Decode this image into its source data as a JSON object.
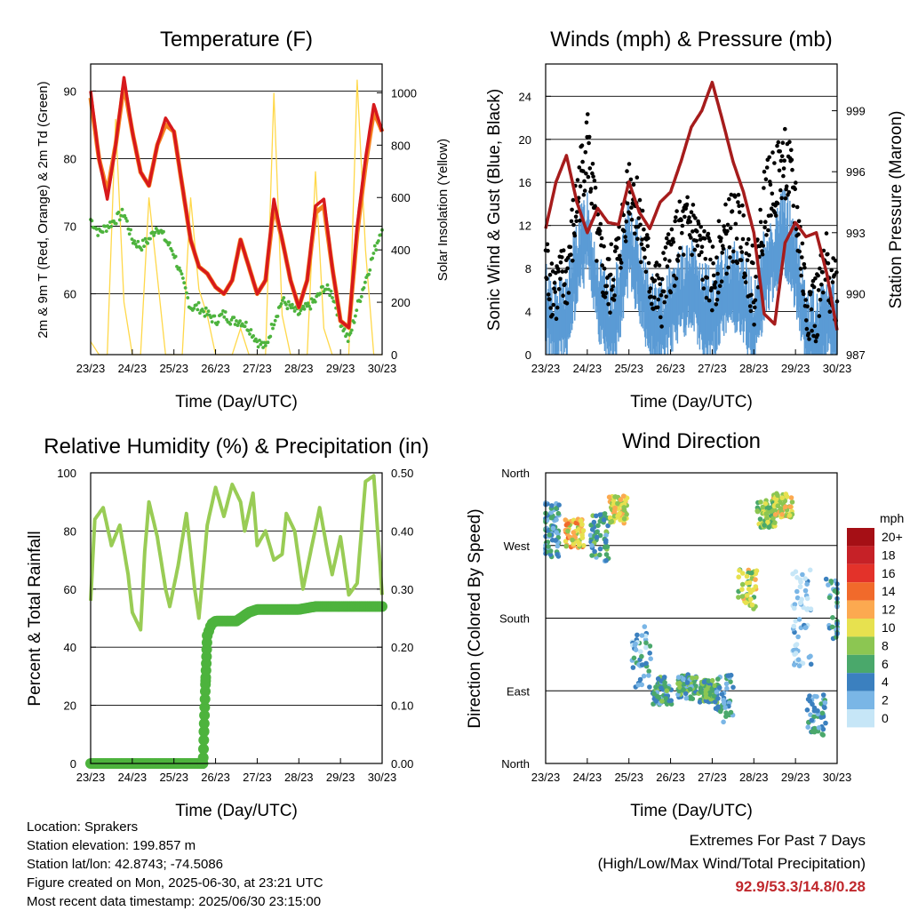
{
  "colors": {
    "temp_red": "#d7191c",
    "temp_orange": "#f58220",
    "dewpoint_green": "#4db33d",
    "solar_yellow": "#ffd84a",
    "wind_blue": "#5b9bd5",
    "gust_black": "#000000",
    "pressure_maroon": "#a61c1c",
    "rh_green": "#99cc55",
    "rain_green": "#4db33d",
    "grid": "#000000"
  },
  "x_ticks": [
    "23/23",
    "24/23",
    "25/23",
    "26/23",
    "27/23",
    "28/23",
    "29/23",
    "30/23"
  ],
  "chart_data": [
    {
      "type": "line",
      "title": "Temperature (F)",
      "xlabel": "Time (Day/UTC)",
      "ylabel": "2m & 9m T (Red, Orange) & 2m Td (Green)",
      "y2label": "Solar Insolation (Yellow)",
      "x_ticks": [
        "23/23",
        "24/23",
        "25/23",
        "26/23",
        "27/23",
        "28/23",
        "29/23",
        "30/23"
      ],
      "ylim": [
        51,
        94
      ],
      "y_ticks": [
        60,
        70,
        80,
        90
      ],
      "y2lim": [
        0,
        1110
      ],
      "y2_ticks": [
        0,
        200,
        400,
        600,
        800,
        1000
      ],
      "x_days": [
        0,
        0.2,
        0.4,
        0.6,
        0.8,
        1.0,
        1.2,
        1.4,
        1.6,
        1.8,
        2.0,
        2.2,
        2.4,
        2.6,
        2.8,
        3.0,
        3.2,
        3.4,
        3.6,
        3.8,
        4.0,
        4.2,
        4.4,
        4.6,
        4.8,
        5.0,
        5.2,
        5.4,
        5.6,
        5.8,
        6.0,
        6.2,
        6.4,
        6.6,
        6.8,
        7.0
      ],
      "series": [
        {
          "key": "t2m",
          "values": [
            90,
            80,
            74,
            82,
            92,
            84,
            78,
            76,
            82,
            86,
            84,
            76,
            68,
            64,
            63,
            61,
            60,
            62,
            68,
            64,
            60,
            62,
            74,
            68,
            62,
            58,
            62,
            73,
            74,
            64,
            56,
            55,
            70,
            80,
            88,
            84
          ]
        },
        {
          "key": "t9m",
          "values": [
            89,
            80,
            75,
            82,
            91,
            84,
            78,
            76,
            82,
            85,
            84,
            76,
            68,
            64,
            63,
            61,
            60,
            62,
            68,
            64,
            60,
            62,
            73,
            68,
            62,
            58,
            62,
            72,
            73,
            64,
            56,
            55,
            69,
            79,
            87,
            84
          ]
        },
        {
          "key": "td2m",
          "values": [
            71,
            69,
            70,
            71,
            72,
            68,
            67,
            68,
            70,
            68,
            66,
            62,
            58,
            58,
            57,
            56,
            57,
            56,
            56,
            55,
            53,
            52,
            56,
            59,
            58,
            57,
            58,
            59,
            61,
            60,
            56,
            53,
            58,
            62,
            66,
            70
          ]
        },
        {
          "key": "solar",
          "values": [
            50,
            0,
            0,
            900,
            200,
            0,
            0,
            600,
            300,
            0,
            0,
            0,
            600,
            250,
            150,
            0,
            0,
            0,
            100,
            0,
            0,
            0,
            1000,
            150,
            0,
            0,
            0,
            700,
            100,
            0,
            0,
            0,
            1050,
            400,
            0,
            0
          ]
        }
      ]
    },
    {
      "type": "scatter",
      "title": "Winds (mph) & Pressure (mb)",
      "xlabel": "Time (Day/UTC)",
      "ylabel": "Sonic Wind & Gust (Blue, Black)",
      "y2label": "Station Pressure (Maroon)",
      "x_ticks": [
        "23/23",
        "24/23",
        "25/23",
        "26/23",
        "27/23",
        "28/23",
        "29/23",
        "30/23"
      ],
      "ylim": [
        0,
        27
      ],
      "y_ticks": [
        0,
        4,
        8,
        12,
        16,
        20,
        24
      ],
      "y2lim": [
        987,
        1001.3
      ],
      "y2_ticks": [
        987,
        990,
        993,
        996,
        999
      ],
      "x_days": [
        0,
        0.25,
        0.5,
        0.75,
        1.0,
        1.25,
        1.5,
        1.75,
        2.0,
        2.25,
        2.5,
        2.75,
        3.0,
        3.25,
        3.5,
        3.75,
        4.0,
        4.25,
        4.5,
        4.75,
        5.0,
        5.25,
        5.5,
        5.75,
        6.0,
        6.25,
        6.5,
        6.75,
        7.0
      ],
      "series": [
        {
          "key": "wind",
          "values": [
            5,
            3,
            4,
            9,
            12,
            6,
            3,
            5,
            11,
            8,
            4,
            3,
            5,
            6,
            7,
            5,
            4,
            6,
            7,
            6,
            3,
            8,
            10,
            12,
            9,
            3,
            2,
            4,
            3
          ]
        },
        {
          "key": "gust",
          "values": [
            8,
            6,
            7,
            14,
            20,
            10,
            6,
            9,
            16,
            13,
            7,
            5,
            9,
            11,
            12,
            9,
            7,
            10,
            12,
            11,
            6,
            14,
            16,
            18,
            14,
            5,
            4,
            8,
            6
          ]
        },
        {
          "key": "pressure",
          "values": [
            993.2,
            995.5,
            996.8,
            994.5,
            993,
            994.2,
            993.5,
            993.4,
            995.5,
            994,
            993.2,
            994.5,
            995,
            996.5,
            998.2,
            999,
            1000.4,
            998.5,
            996.5,
            995,
            993,
            989,
            988.5,
            992.5,
            993.5,
            992.8,
            993,
            991,
            988.2
          ]
        }
      ]
    },
    {
      "type": "line",
      "title": "Relative Humidity (%) & Precipitation (in)",
      "xlabel": "Time (Day/UTC)",
      "ylabel": "Percent & Total Rainfall",
      "x_ticks": [
        "23/23",
        "24/23",
        "25/23",
        "26/23",
        "27/23",
        "28/23",
        "29/23",
        "30/23"
      ],
      "ylim": [
        0,
        100
      ],
      "y_ticks": [
        0,
        20,
        40,
        60,
        80,
        100
      ],
      "y2lim": [
        0,
        0.5
      ],
      "y2_ticks": [
        "0.00",
        "0.10",
        "0.20",
        "0.30",
        "0.40",
        "0.50"
      ],
      "series": [
        {
          "key": "rh",
          "x": [
            0,
            0.1,
            0.3,
            0.5,
            0.7,
            0.9,
            1.0,
            1.2,
            1.3,
            1.4,
            1.6,
            1.8,
            1.9,
            2.1,
            2.3,
            2.5,
            2.6,
            2.8,
            3.0,
            3.2,
            3.4,
            3.6,
            3.7,
            3.9,
            4.0,
            4.2,
            4.4,
            4.6,
            4.7,
            4.9,
            5.1,
            5.3,
            5.5,
            5.7,
            5.8,
            6.0,
            6.2,
            6.4,
            6.6,
            6.8,
            7.0
          ],
          "values": [
            56,
            84,
            88,
            75,
            82,
            65,
            52,
            46,
            73,
            90,
            78,
            60,
            54,
            68,
            86,
            60,
            50,
            82,
            95,
            85,
            96,
            90,
            80,
            93,
            75,
            80,
            70,
            72,
            86,
            80,
            60,
            74,
            88,
            72,
            65,
            78,
            58,
            62,
            97,
            99,
            58
          ]
        },
        {
          "key": "rain",
          "x": [
            0,
            1,
            2,
            2.7,
            2.72,
            2.75,
            2.78,
            2.8,
            2.85,
            2.9,
            3.0,
            3.5,
            3.8,
            4.0,
            4.5,
            5.0,
            5.4,
            6.0,
            7.0
          ],
          "values": [
            0,
            0,
            0,
            0,
            0.05,
            0.12,
            0.18,
            0.22,
            0.23,
            0.24,
            0.245,
            0.245,
            0.26,
            0.265,
            0.265,
            0.265,
            0.27,
            0.27,
            0.27
          ]
        }
      ]
    },
    {
      "type": "scatter",
      "title": "Wind Direction",
      "xlabel": "Time (Day/UTC)",
      "ylabel": "Direction (Colored By Speed)",
      "x_ticks": [
        "23/23",
        "24/23",
        "25/23",
        "26/23",
        "27/23",
        "28/23",
        "29/23",
        "30/23"
      ],
      "y_ticks": [
        "North",
        "East",
        "South",
        "West",
        "North"
      ],
      "ylim": [
        0,
        360
      ],
      "legend_title": "mph",
      "legend_labels": [
        "20+",
        "18",
        "16",
        "14",
        "12",
        "10",
        "8",
        "6",
        "4",
        "2",
        "0"
      ],
      "legend_colors": [
        "#a50f15",
        "#c62127",
        "#e3322a",
        "#f16a2b",
        "#fca950",
        "#e7e14f",
        "#8cc652",
        "#4aa86b",
        "#3b80bf",
        "#7ab6e6",
        "#c6e6f7"
      ],
      "clusters": [
        {
          "day": 0.1,
          "dir": 290,
          "spread": 70,
          "speed": 4,
          "n": 70
        },
        {
          "day": 0.7,
          "dir": 285,
          "spread": 35,
          "speed": 11,
          "n": 60
        },
        {
          "day": 1.3,
          "dir": 280,
          "spread": 60,
          "speed": 5,
          "n": 55
        },
        {
          "day": 1.75,
          "dir": 315,
          "spread": 35,
          "speed": 10,
          "n": 70
        },
        {
          "day": 2.3,
          "dir": 130,
          "spread": 80,
          "speed": 3,
          "n": 45
        },
        {
          "day": 2.8,
          "dir": 90,
          "spread": 35,
          "speed": 5,
          "n": 70
        },
        {
          "day": 3.4,
          "dir": 95,
          "spread": 30,
          "speed": 5,
          "n": 80
        },
        {
          "day": 3.9,
          "dir": 90,
          "spread": 30,
          "speed": 6,
          "n": 70
        },
        {
          "day": 4.3,
          "dir": 80,
          "spread": 60,
          "speed": 4,
          "n": 40
        },
        {
          "day": 4.85,
          "dir": 215,
          "spread": 50,
          "speed": 9,
          "n": 45
        },
        {
          "day": 5.3,
          "dir": 310,
          "spread": 35,
          "speed": 8,
          "n": 60
        },
        {
          "day": 5.7,
          "dir": 320,
          "spread": 30,
          "speed": 10,
          "n": 60
        },
        {
          "day": 6.15,
          "dir": 180,
          "spread": 120,
          "speed": 1,
          "n": 60
        },
        {
          "day": 6.5,
          "dir": 60,
          "spread": 50,
          "speed": 4,
          "n": 45
        },
        {
          "day": 6.95,
          "dir": 190,
          "spread": 80,
          "speed": 4,
          "n": 30
        }
      ]
    }
  ],
  "info": {
    "location": "Location: Sprakers",
    "elevation": "Station elevation: 199.857 m",
    "latlon": "Station lat/lon: 42.8743; -74.5086",
    "created": "Figure created on Mon, 2025-06-30, at 23:21 UTC",
    "recent": "Most recent data timestamp: 2025/06/30 23:15:00"
  },
  "extremes": {
    "line1": "Extremes For Past 7 Days",
    "line2": "(High/Low/Max Wind/Total Precipitation)",
    "values": "92.9/53.3/14.8/0.28"
  }
}
